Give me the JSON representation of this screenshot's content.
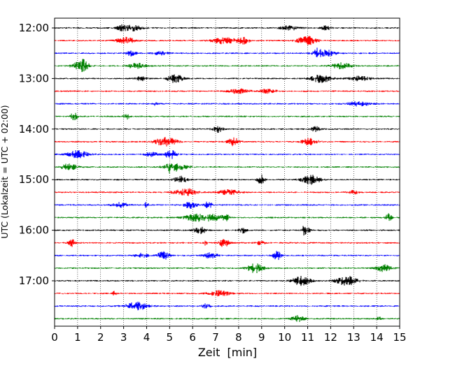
{
  "chart_data": {
    "type": "line",
    "title": "",
    "xlabel": "Zeit  [min]",
    "ylabel": "UTC (Lokalzeit = UTC + 02:00)",
    "xlim": [
      0,
      15
    ],
    "x_ticks": [
      "0",
      "1",
      "2",
      "3",
      "4",
      "5",
      "6",
      "7",
      "8",
      "9",
      "10",
      "11",
      "12",
      "13",
      "14",
      "15"
    ],
    "y_tick_labels": [
      "12:00",
      "13:00",
      "14:00",
      "15:00",
      "16:00",
      "17:00"
    ],
    "grid": "vertical dotted lines at each minute",
    "row_interval_min": 15,
    "colors": [
      "#000000",
      "#ff0000",
      "#0000ff",
      "#008000"
    ],
    "rows": [
      {
        "start": "12:00",
        "color": "#000000"
      },
      {
        "start": "12:15",
        "color": "#ff0000"
      },
      {
        "start": "12:30",
        "color": "#0000ff"
      },
      {
        "start": "12:45",
        "color": "#008000"
      },
      {
        "start": "13:00",
        "color": "#000000"
      },
      {
        "start": "13:15",
        "color": "#ff0000"
      },
      {
        "start": "13:30",
        "color": "#0000ff"
      },
      {
        "start": "13:45",
        "color": "#008000"
      },
      {
        "start": "14:00",
        "color": "#000000"
      },
      {
        "start": "14:15",
        "color": "#ff0000"
      },
      {
        "start": "14:30",
        "color": "#0000ff"
      },
      {
        "start": "14:45",
        "color": "#008000"
      },
      {
        "start": "15:00",
        "color": "#000000"
      },
      {
        "start": "15:15",
        "color": "#ff0000"
      },
      {
        "start": "15:30",
        "color": "#0000ff"
      },
      {
        "start": "15:45",
        "color": "#008000"
      },
      {
        "start": "16:00",
        "color": "#000000"
      },
      {
        "start": "16:15",
        "color": "#ff0000"
      },
      {
        "start": "16:30",
        "color": "#0000ff"
      },
      {
        "start": "16:45",
        "color": "#008000"
      },
      {
        "start": "17:00",
        "color": "#000000"
      },
      {
        "start": "17:15",
        "color": "#ff0000"
      },
      {
        "start": "17:30",
        "color": "#0000ff"
      },
      {
        "start": "17:45",
        "color": "#008000"
      }
    ]
  }
}
